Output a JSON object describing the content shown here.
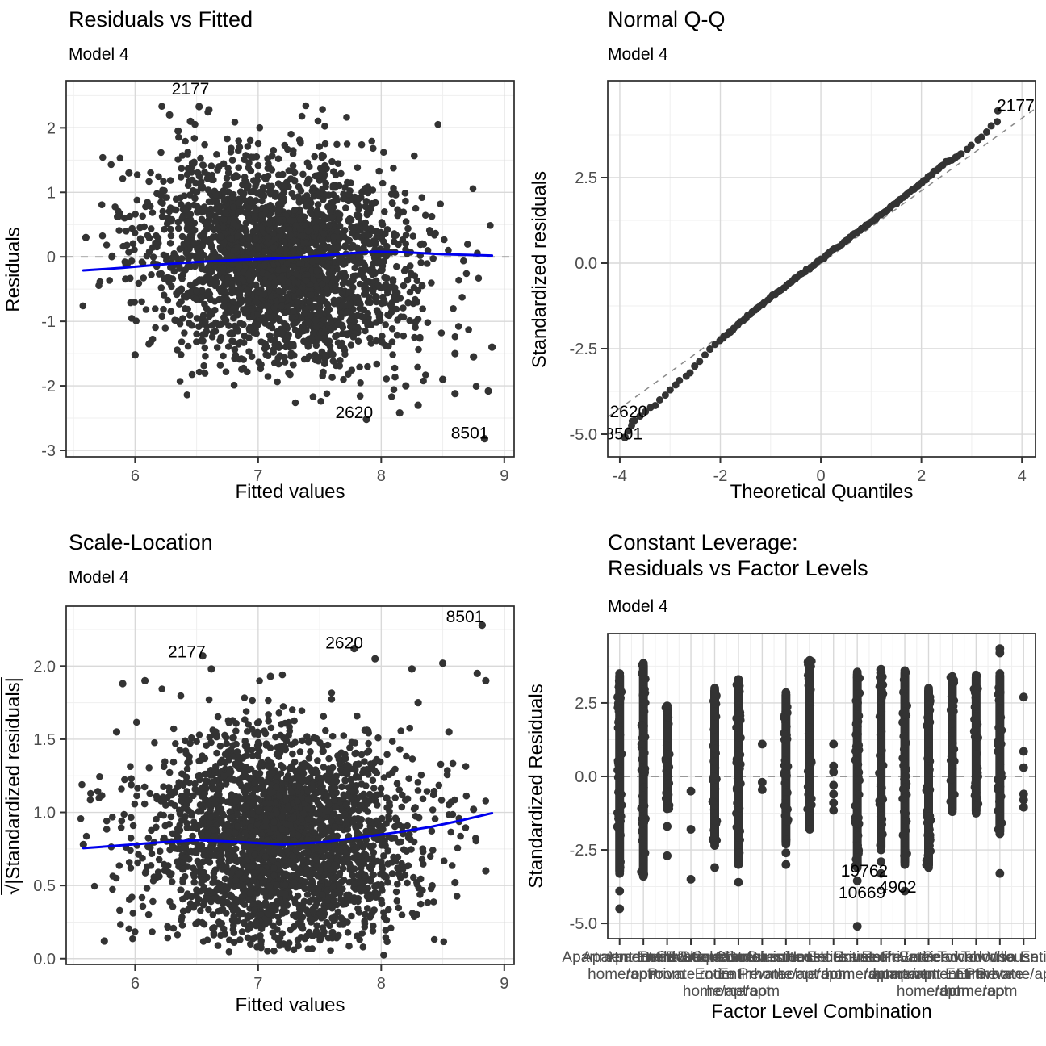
{
  "colors": {
    "point": "#333333",
    "smooth_line": "#0000EE",
    "dashed_reference": "#8a8a8a",
    "grid_major": "#d9d9d9",
    "grid_minor": "#efefef",
    "panel_border": "#2b2b2b",
    "tick_text": "#4d4d4d",
    "label_text": "#000000"
  },
  "chart_data": [
    {
      "id": "residuals-vs-fitted",
      "type": "scatter",
      "title": "Residuals vs Fitted",
      "subtitle": "Model 4",
      "xlabel": "Fitted values",
      "ylabel": "Residuals",
      "xlim": [
        5.44,
        9.08
      ],
      "ylim": [
        -3.1,
        2.73
      ],
      "x_ticks": [
        "6",
        "7",
        "8",
        "9"
      ],
      "y_ticks": [
        "2",
        "1",
        "0",
        "-1",
        "-2",
        "-3"
      ],
      "hline": 0,
      "cloud": {
        "n": 2600,
        "x_mean": 7.18,
        "x_sd": 0.54,
        "y_mean": -0.06,
        "y_sd": 0.78,
        "x_clip": [
          5.55,
          8.95
        ],
        "y_clip": [
          -2.38,
          2.35
        ],
        "trend": -0.18,
        "seed": 11
      },
      "smooth": [
        [
          5.58,
          -0.21
        ],
        [
          5.9,
          -0.17
        ],
        [
          6.2,
          -0.12
        ],
        [
          6.5,
          -0.08
        ],
        [
          6.8,
          -0.05
        ],
        [
          7.1,
          -0.03
        ],
        [
          7.4,
          0.0
        ],
        [
          7.7,
          0.05
        ],
        [
          7.95,
          0.08
        ],
        [
          8.2,
          0.07
        ],
        [
          8.5,
          0.04
        ],
        [
          8.7,
          0.03
        ],
        [
          8.9,
          0.02
        ]
      ],
      "extra_points": [
        [
          5.6,
          0.3
        ],
        [
          5.95,
          1.3
        ],
        [
          6.0,
          -1.52
        ],
        [
          6.28,
          2.2
        ],
        [
          6.35,
          1.95
        ],
        [
          6.52,
          2.33
        ],
        [
          6.6,
          2.28
        ],
        [
          6.45,
          2.1
        ],
        [
          7.88,
          -2.52
        ],
        [
          8.84,
          -2.82
        ],
        [
          8.6,
          -2.12
        ],
        [
          8.87,
          -2.08
        ],
        [
          8.3,
          -2.3
        ],
        [
          8.5,
          -1.9
        ],
        [
          8.2,
          -2.0
        ],
        [
          8.15,
          -2.42
        ],
        [
          8.75,
          -1.55
        ],
        [
          8.6,
          -1.5
        ],
        [
          8.9,
          -1.4
        ]
      ],
      "point_labels": [
        {
          "text": "2177",
          "x": 6.45,
          "y": 2.52
        },
        {
          "text": "2620",
          "x": 7.78,
          "y": -2.5
        },
        {
          "text": "8501",
          "x": 8.72,
          "y": -2.82
        }
      ]
    },
    {
      "id": "normal-qq",
      "type": "qq",
      "title": "Normal Q-Q",
      "subtitle": "Model 4",
      "xlabel": "Theoretical Quantiles",
      "ylabel": "Standardized residuals",
      "xlim": [
        -4.24,
        4.27
      ],
      "ylim": [
        -5.66,
        5.33
      ],
      "x_ticks": [
        "-4",
        "-2",
        "0",
        "2",
        "4"
      ],
      "y_ticks": [
        "2.5",
        "0.0",
        "-2.5",
        "-5.0"
      ],
      "ref_line": {
        "x1": -4.24,
        "y1": -4.5,
        "x2": 4.27,
        "y2": 4.52
      },
      "curve": [
        [
          -3.9,
          -5.1
        ],
        [
          -3.7,
          -4.6
        ],
        [
          -3.5,
          -4.35
        ],
        [
          -3.3,
          -4.15
        ],
        [
          -3.1,
          -3.85
        ],
        [
          -3.0,
          -3.7
        ],
        [
          -2.8,
          -3.45
        ],
        [
          -2.6,
          -3.2
        ],
        [
          -2.5,
          -3.0
        ],
        [
          -2.4,
          -2.85
        ],
        [
          -2.3,
          -2.7
        ],
        [
          -2.2,
          -2.5
        ],
        [
          -2.0,
          -2.25
        ],
        [
          -1.8,
          -2.0
        ],
        [
          -1.5,
          -1.6
        ],
        [
          -1.2,
          -1.25
        ],
        [
          -1.0,
          -1.0
        ],
        [
          -0.5,
          -0.45
        ],
        [
          0,
          0.1
        ],
        [
          0.5,
          0.65
        ],
        [
          1.0,
          1.2
        ],
        [
          1.5,
          1.75
        ],
        [
          2.0,
          2.35
        ],
        [
          2.5,
          2.95
        ],
        [
          2.8,
          3.2
        ],
        [
          3.0,
          3.45
        ],
        [
          3.2,
          3.7
        ],
        [
          3.4,
          4.0
        ],
        [
          3.55,
          4.2
        ]
      ],
      "extra_points": [
        [
          3.52,
          4.45
        ],
        [
          -3.9,
          -5.1
        ],
        [
          -3.75,
          -4.62
        ]
      ],
      "point_labels": [
        {
          "text": "2177",
          "x": 4.25,
          "y": 4.45,
          "anchor": "end"
        },
        {
          "text": "2620",
          "x": -4.2,
          "y": -4.5,
          "anchor": "start"
        },
        {
          "text": "8501",
          "x": -4.3,
          "y": -5.15,
          "anchor": "start"
        }
      ]
    },
    {
      "id": "scale-location",
      "type": "scatter",
      "title": "Scale-Location",
      "subtitle": "Model 4",
      "xlabel": "Fitted values",
      "ylabel": "√|Standardized residuals|",
      "xlim": [
        5.44,
        9.08
      ],
      "ylim": [
        -0.04,
        2.41
      ],
      "x_ticks": [
        "6",
        "7",
        "8",
        "9"
      ],
      "y_ticks": [
        "2.0",
        "1.5",
        "1.0",
        "0.5",
        "0.0"
      ],
      "hline": null,
      "cloud": {
        "n": 2600,
        "x_mean": 7.18,
        "x_sd": 0.54,
        "mode": "sqrtabs",
        "y_sd": 1.02,
        "x_clip": [
          5.55,
          8.95
        ],
        "y_clip": [
          0.02,
          2.12
        ],
        "seed": 29
      },
      "smooth": [
        [
          5.58,
          0.755
        ],
        [
          5.9,
          0.775
        ],
        [
          6.2,
          0.795
        ],
        [
          6.5,
          0.81
        ],
        [
          6.8,
          0.8
        ],
        [
          7.0,
          0.79
        ],
        [
          7.2,
          0.78
        ],
        [
          7.5,
          0.795
        ],
        [
          7.8,
          0.825
        ],
        [
          8.1,
          0.86
        ],
        [
          8.4,
          0.9
        ],
        [
          8.65,
          0.945
        ],
        [
          8.9,
          0.995
        ]
      ],
      "extra_points": [
        [
          5.58,
          0.78
        ],
        [
          5.75,
          0.12
        ],
        [
          5.85,
          1.55
        ],
        [
          5.9,
          1.88
        ],
        [
          6.08,
          1.9
        ],
        [
          6.55,
          2.07
        ],
        [
          6.62,
          1.98
        ],
        [
          7.1,
          1.93
        ],
        [
          7.78,
          2.12
        ],
        [
          7.95,
          2.05
        ],
        [
          8.25,
          1.98
        ],
        [
          8.5,
          2.02
        ],
        [
          8.82,
          2.28
        ],
        [
          8.78,
          1.95
        ],
        [
          8.85,
          1.9
        ],
        [
          8.3,
          1.75
        ],
        [
          8.55,
          1.55
        ],
        [
          8.75,
          1.02
        ],
        [
          8.6,
          0.52
        ],
        [
          8.85,
          0.6
        ]
      ],
      "point_labels": [
        {
          "text": "2177",
          "x": 6.42,
          "y": 2.06
        },
        {
          "text": "2620",
          "x": 7.7,
          "y": 2.12
        },
        {
          "text": "8501",
          "x": 8.68,
          "y": 2.3
        }
      ]
    },
    {
      "id": "constant-leverage",
      "type": "strip",
      "title": "Constant Leverage:\nResiduals vs Factor Levels",
      "subtitle": "Model 4",
      "xlabel": "Factor Level Combination",
      "ylabel": "Standardized Residuals",
      "ylim": [
        -5.52,
        4.86
      ],
      "y_ticks": [
        "2.5",
        "0.0",
        "-2.5",
        "-5.0"
      ],
      "hline": 0,
      "strips": [
        {
          "lines": [
            "Apartment Entire",
            "home/apt"
          ],
          "range": [
            -3.3,
            3.5
          ],
          "extras": [
            -3.9,
            -4.5
          ]
        },
        {
          "lines": [
            "Apartment Private",
            "room"
          ],
          "range": [
            -3.4,
            3.85
          ],
          "extras": []
        },
        {
          "lines": [
            "Apartment Shared",
            "room"
          ],
          "range": [
            -1.1,
            2.4
          ],
          "extras": [
            -1.7,
            -2.7
          ]
        },
        {
          "lines": [
            "Bed&Breakfast",
            "Private room"
          ],
          "range": null,
          "extras": [
            -0.5,
            -1.8,
            -3.5
          ]
        },
        {
          "lines": [
            "Boutique hotel",
            "Entire",
            "home/apt"
          ],
          "range": [
            -2.35,
            3.0
          ],
          "extras": [
            -3.1
          ]
        },
        {
          "lines": [
            "Condominium",
            "Entire",
            "home/apt"
          ],
          "range": [
            -3.0,
            3.3
          ],
          "extras": [
            -3.6
          ]
        },
        {
          "lines": [
            "Condominium",
            "Private",
            "room"
          ],
          "range": null,
          "extras": [
            1.1,
            -0.2,
            -0.45
          ]
        },
        {
          "lines": [
            "Guest suite Entire",
            "home/apt"
          ],
          "range": [
            -2.3,
            2.85
          ],
          "extras": [
            -2.6,
            -3.0
          ]
        },
        {
          "lines": [
            "Guesthouse Entire",
            "home/apt"
          ],
          "range": [
            -1.8,
            3.95
          ],
          "extras": []
        },
        {
          "lines": [
            "Hostel Private",
            "room"
          ],
          "range": null,
          "extras": [
            1.1,
            0.35,
            0.15,
            -0.3,
            -0.6,
            -0.9,
            -1.15
          ]
        },
        {
          "lines": [
            "House Entire",
            "home/apt"
          ],
          "range": [
            -3.1,
            3.55
          ],
          "extras": [
            -3.55,
            -5.1
          ]
        },
        {
          "lines": [
            "House Private",
            "room"
          ],
          "range": [
            -2.5,
            3.65
          ],
          "extras": [
            -2.9,
            -3.3
          ]
        },
        {
          "lines": [
            "Loft Entire",
            "home/apt"
          ],
          "range": [
            -3.0,
            3.6
          ],
          "extras": [
            -3.9
          ]
        },
        {
          "lines": [
            "Serviced",
            "apartment Entire",
            "home/apt"
          ],
          "range": [
            -3.1,
            3.0
          ],
          "extras": []
        },
        {
          "lines": [
            "Serviced",
            "apartment Private",
            "room"
          ],
          "range": [
            -1.2,
            3.4
          ],
          "extras": []
        },
        {
          "lines": [
            "Townhouse",
            "Entire",
            "home/apt"
          ],
          "range": [
            -1.25,
            3.45
          ],
          "extras": []
        },
        {
          "lines": [
            "Townhouse",
            "Private",
            "room"
          ],
          "range": [
            -1.95,
            3.5
          ],
          "extras": [
            4.35,
            4.2,
            -3.3
          ]
        },
        {
          "lines": [
            "Villa Entire",
            "home/apt"
          ],
          "range": null,
          "extras": [
            2.7,
            0.85,
            0.3,
            -0.6,
            -0.8,
            -1.05
          ]
        }
      ],
      "point_labels": [
        {
          "text": "19762",
          "x": 11.3,
          "y": -3.4
        },
        {
          "text": "10669",
          "x": 11.2,
          "y": -4.15
        },
        {
          "text": "4902",
          "x": 12.7,
          "y": -3.95
        }
      ]
    }
  ]
}
